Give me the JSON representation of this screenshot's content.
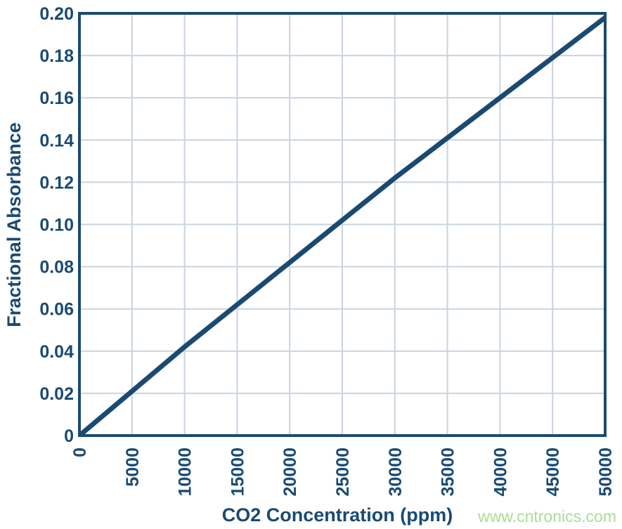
{
  "chart_data": {
    "type": "line",
    "title": "",
    "xlabel": "CO2 Concentration (ppm)",
    "ylabel": "Fractional Absorbance",
    "x": [
      0,
      5000,
      10000,
      15000,
      20000,
      25000,
      30000,
      35000,
      40000,
      45000,
      50000
    ],
    "series": [
      {
        "name": "Fractional Absorbance",
        "values": [
          0,
          0.021,
          0.042,
          0.062,
          0.082,
          0.102,
          0.122,
          0.141,
          0.16,
          0.179,
          0.198
        ]
      }
    ],
    "x_tick_labels": [
      "0",
      "5000",
      "10000",
      "15000",
      "20000",
      "25000",
      "30000",
      "35000",
      "40000",
      "45000",
      "50000"
    ],
    "y_tick_labels": [
      "0",
      "0.02",
      "0.04",
      "0.06",
      "0.08",
      "0.10",
      "0.12",
      "0.14",
      "0.16",
      "0.18",
      "0.20"
    ],
    "xlim": [
      0,
      50000
    ],
    "ylim": [
      0,
      0.2
    ],
    "grid": true,
    "legend_position": "none",
    "line_color": "#1a4a72",
    "grid_color": "#c9d4df",
    "frame_color": "#1a4a72",
    "text_color": "#1a4a72",
    "background_color": "#ffffff"
  },
  "watermark": {
    "text": "www.cntronics.com",
    "color": "#a9dd97"
  }
}
